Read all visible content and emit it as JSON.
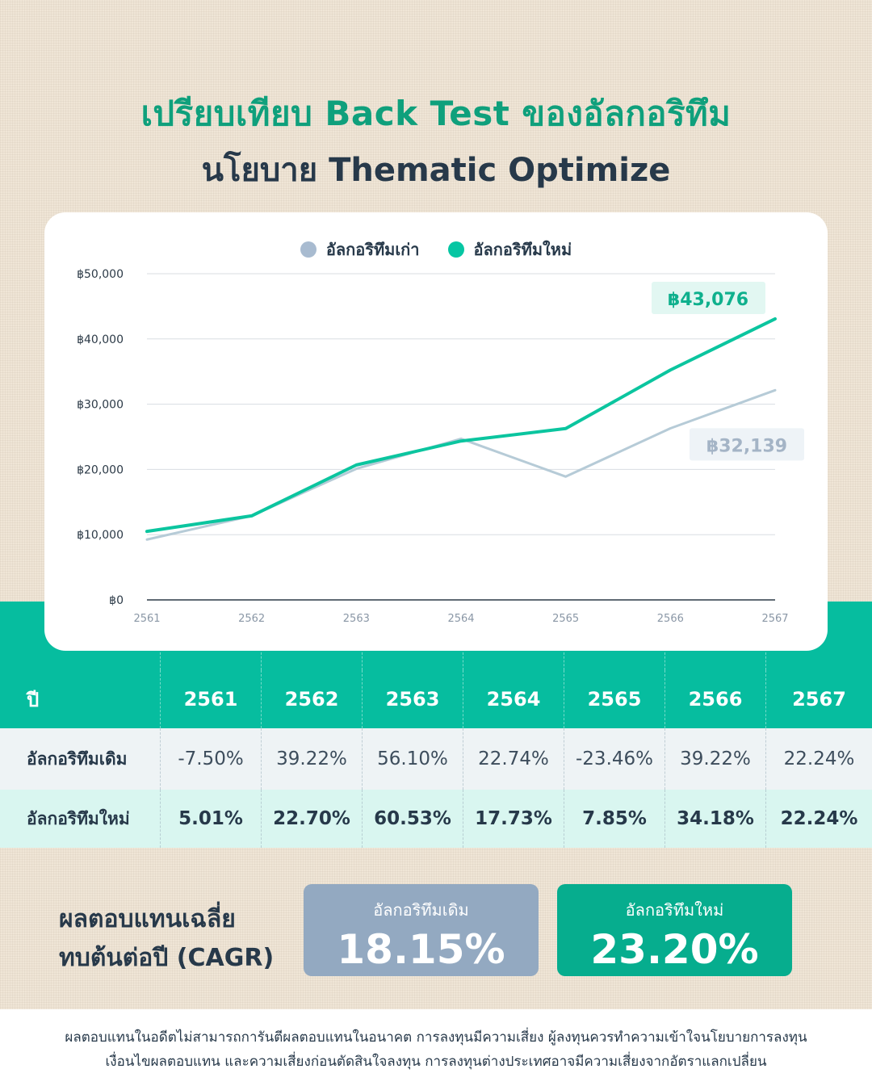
{
  "header": {
    "title": "เปรียบเทียบ Back Test ของอัลกอริทึม",
    "subtitle": "นโยบาย Thematic Optimize"
  },
  "legend": {
    "old": "อัลกอริทึมเก่า",
    "new": "อัลกอริทึมใหม่"
  },
  "colors": {
    "old": "#b6cbd7",
    "new": "#0bc59f",
    "old_dot": "#a8bbd0",
    "new_dot": "#06c6a3"
  },
  "chart_data": {
    "type": "line",
    "x": [
      "2561",
      "2562",
      "2563",
      "2564",
      "2565",
      "2566",
      "2567"
    ],
    "series": [
      {
        "name": "อัลกอริทึมเก่า",
        "values": [
          9250,
          12880,
          20100,
          24700,
          18900,
          26300,
          32139
        ]
      },
      {
        "name": "อัลกอริทึมใหม่",
        "values": [
          10501,
          12885,
          20685,
          24352,
          26263,
          35240,
          43076
        ]
      }
    ],
    "ylim": [
      0,
      50000
    ],
    "yticks": [
      "฿0",
      "฿10,000",
      "฿20,000",
      "฿30,000",
      "฿40,000",
      "฿50,000"
    ],
    "grid": true,
    "legend_position": "top-center",
    "end_labels": {
      "old": "฿32,139",
      "new": "฿43,076"
    }
  },
  "table": {
    "header_label": "ปี",
    "years": [
      "2561",
      "2562",
      "2563",
      "2564",
      "2565",
      "2566",
      "2567"
    ],
    "rows": [
      {
        "label": "อัลกอริทึมเดิม",
        "values": [
          "-7.50%",
          "39.22%",
          "56.10%",
          "22.74%",
          "-23.46%",
          "39.22%",
          "22.24%"
        ]
      },
      {
        "label": "อัลกอริทึมใหม่",
        "values": [
          "5.01%",
          "22.70%",
          "60.53%",
          "17.73%",
          "7.85%",
          "34.18%",
          "22.24%"
        ]
      }
    ]
  },
  "cagr": {
    "line1": "ผลตอบแทนเฉลี่ย",
    "line2": "ทบต้นต่อปี (CAGR)",
    "old_label": "อัลกอริทึมเดิม",
    "old_value": "18.15%",
    "new_label": "อัลกอริทึมใหม่",
    "new_value": "23.20%"
  },
  "footer": {
    "line1": "ผลตอบแทนในอดีตไม่สามารถการันตีผลตอบแทนในอนาคต การลงทุนมีความเสี่ยง ผู้ลงทุนควรทำความเข้าใจนโยบายการลงทุน",
    "line2": "เงื่อนไขผลตอบแทน และความเสี่ยงก่อนตัดสินใจลงทุน การลงทุนต่างประเทศอาจมีความเสี่ยงจากอัตราแลกเปลี่ยน"
  }
}
